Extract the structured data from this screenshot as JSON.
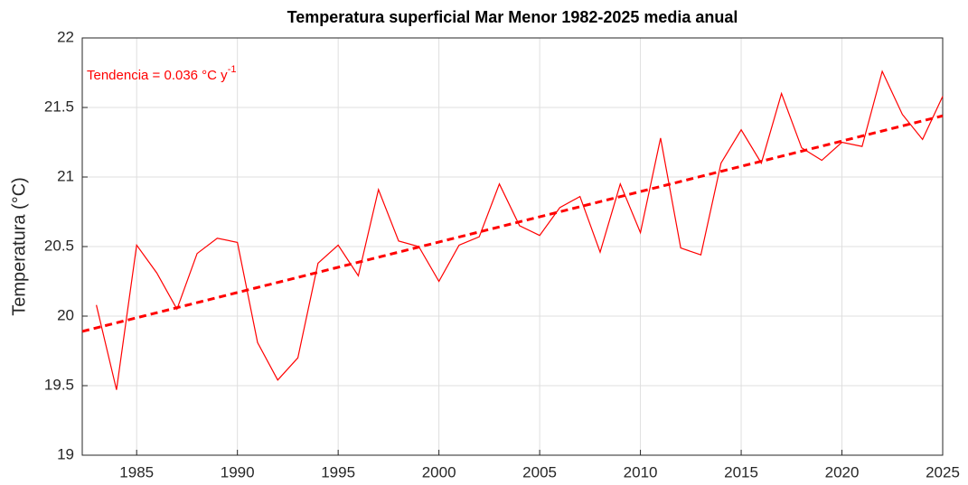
{
  "chart_data": {
    "type": "line",
    "title": "Temperatura superficial Mar Menor 1982-2025 media anual",
    "y_label": "Temperatura (°C)",
    "annotation": {
      "text": "Tendencia = 0.036 °C y",
      "superscript": "-1"
    },
    "x": [
      1983,
      1984,
      1985,
      1986,
      1987,
      1988,
      1989,
      1990,
      1991,
      1992,
      1993,
      1994,
      1995,
      1996,
      1997,
      1998,
      1999,
      2000,
      2001,
      2002,
      2003,
      2004,
      2005,
      2006,
      2007,
      2008,
      2009,
      2010,
      2011,
      2012,
      2013,
      2014,
      2015,
      2016,
      2017,
      2018,
      2019,
      2020,
      2021,
      2022,
      2023,
      2024,
      2025
    ],
    "series": [
      {
        "color": "#ff0000",
        "values": [
          20.08,
          19.47,
          20.51,
          20.31,
          20.05,
          20.45,
          20.56,
          20.53,
          19.81,
          19.54,
          19.7,
          20.38,
          20.51,
          20.29,
          20.91,
          20.54,
          20.5,
          20.25,
          20.51,
          20.57,
          20.95,
          20.65,
          20.58,
          20.78,
          20.86,
          20.46,
          20.95,
          20.6,
          21.28,
          20.49,
          20.44,
          21.1,
          21.34,
          21.1,
          21.6,
          21.21,
          21.12,
          21.25,
          21.22,
          21.76,
          21.45,
          21.27,
          21.58
        ]
      }
    ],
    "trend": {
      "color": "#ff0000",
      "dashed": true,
      "x": [
        1982.3,
        2025
      ],
      "values": [
        19.89,
        21.44
      ]
    },
    "xlim": [
      1982.3,
      2025
    ],
    "xticks": [
      1985,
      1990,
      1995,
      2000,
      2005,
      2010,
      2015,
      2020,
      2025
    ],
    "ylim": [
      19,
      22
    ],
    "yticks": [
      19,
      19.5,
      20,
      20.5,
      21,
      21.5,
      22
    ],
    "grid": true
  }
}
